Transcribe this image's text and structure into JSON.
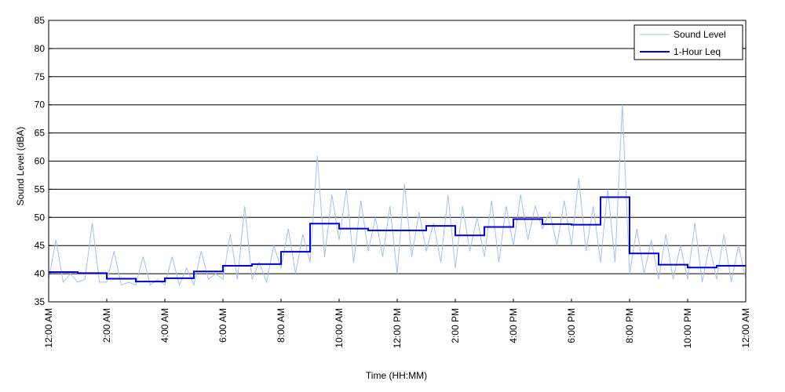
{
  "chart_data": {
    "type": "line",
    "title": "",
    "xlabel": "Time (HH:MM)",
    "ylabel": "Sound Level (dBA)",
    "ylim": [
      35,
      85
    ],
    "yticks": [
      35,
      40,
      45,
      50,
      55,
      60,
      65,
      70,
      75,
      80,
      85
    ],
    "xlim_hours": [
      0,
      24
    ],
    "xtick_hours": [
      0,
      2,
      4,
      6,
      8,
      10,
      12,
      14,
      16,
      18,
      20,
      22,
      24
    ],
    "xtick_labels": [
      "12:00 AM",
      "2:00 AM",
      "4:00 AM",
      "6:00 AM",
      "8:00 AM",
      "10:00 AM",
      "12:00 PM",
      "2:00 PM",
      "4:00 PM",
      "6:00 PM",
      "8:00 PM",
      "10:00 PM",
      "12:00 AM"
    ],
    "grid": "horizontal",
    "legend_position": "top-right",
    "colors": {
      "sound_level": "#a7c0ee",
      "leq": "#0000d9"
    },
    "series": [
      {
        "name": "Sound Level",
        "style": "thin-line",
        "x_hours": [
          0.0,
          0.25,
          0.5,
          0.75,
          1.0,
          1.25,
          1.5,
          1.75,
          2.0,
          2.25,
          2.5,
          2.75,
          3.0,
          3.25,
          3.5,
          3.75,
          4.0,
          4.25,
          4.5,
          4.75,
          5.0,
          5.25,
          5.5,
          5.75,
          6.0,
          6.25,
          6.5,
          6.75,
          7.0,
          7.25,
          7.5,
          7.75,
          8.0,
          8.25,
          8.5,
          8.75,
          9.0,
          9.25,
          9.5,
          9.75,
          10.0,
          10.25,
          10.5,
          10.75,
          11.0,
          11.25,
          11.5,
          11.75,
          12.0,
          12.25,
          12.5,
          12.75,
          13.0,
          13.25,
          13.5,
          13.75,
          14.0,
          14.25,
          14.5,
          14.75,
          15.0,
          15.25,
          15.5,
          15.75,
          16.0,
          16.25,
          16.5,
          16.75,
          17.0,
          17.25,
          17.5,
          17.75,
          18.0,
          18.25,
          18.5,
          18.75,
          19.0,
          19.25,
          19.5,
          19.75,
          20.0,
          20.25,
          20.5,
          20.75,
          21.0,
          21.25,
          21.5,
          21.75,
          22.0,
          22.25,
          22.5,
          22.75,
          23.0,
          23.25,
          23.5,
          23.75,
          24.0
        ],
        "values": [
          39.0,
          46.0,
          38.5,
          40.0,
          38.5,
          39.0,
          49.0,
          38.5,
          38.5,
          44.0,
          38.0,
          38.5,
          38.0,
          43.0,
          38.0,
          39.0,
          38.0,
          43.0,
          38.0,
          41.0,
          38.0,
          44.0,
          39.0,
          40.0,
          39.0,
          47.0,
          39.0,
          52.0,
          39.0,
          42.0,
          38.5,
          45.0,
          41.0,
          48.0,
          40.0,
          47.0,
          42.0,
          61.0,
          43.0,
          54.0,
          46.0,
          55.0,
          42.0,
          53.0,
          44.0,
          50.0,
          43.0,
          52.0,
          40.0,
          56.0,
          43.0,
          51.0,
          44.0,
          49.0,
          42.0,
          54.0,
          41.0,
          52.0,
          44.0,
          50.0,
          43.0,
          53.0,
          42.0,
          52.0,
          45.0,
          54.0,
          46.0,
          52.0,
          48.0,
          51.0,
          45.0,
          53.0,
          45.0,
          57.0,
          44.0,
          52.0,
          42.0,
          55.0,
          42.0,
          70.0,
          40.0,
          48.0,
          40.0,
          46.0,
          39.0,
          47.0,
          39.0,
          45.0,
          39.0,
          49.0,
          38.5,
          45.0,
          39.0,
          47.0,
          38.5,
          45.0,
          39.0
        ]
      },
      {
        "name": "1-Hour Leq",
        "style": "step",
        "x_hours": [
          0,
          1,
          2,
          3,
          4,
          5,
          6,
          7,
          8,
          9,
          10,
          11,
          12,
          13,
          14,
          15,
          16,
          17,
          18,
          19,
          20,
          21,
          22,
          23
        ],
        "values": [
          40.3,
          40.1,
          39.1,
          38.6,
          39.2,
          40.4,
          41.4,
          41.7,
          43.9,
          48.9,
          48.0,
          47.7,
          47.7,
          48.5,
          46.8,
          48.3,
          49.7,
          48.8,
          48.7,
          53.6,
          43.6,
          41.6,
          41.1,
          41.4
        ]
      }
    ]
  }
}
